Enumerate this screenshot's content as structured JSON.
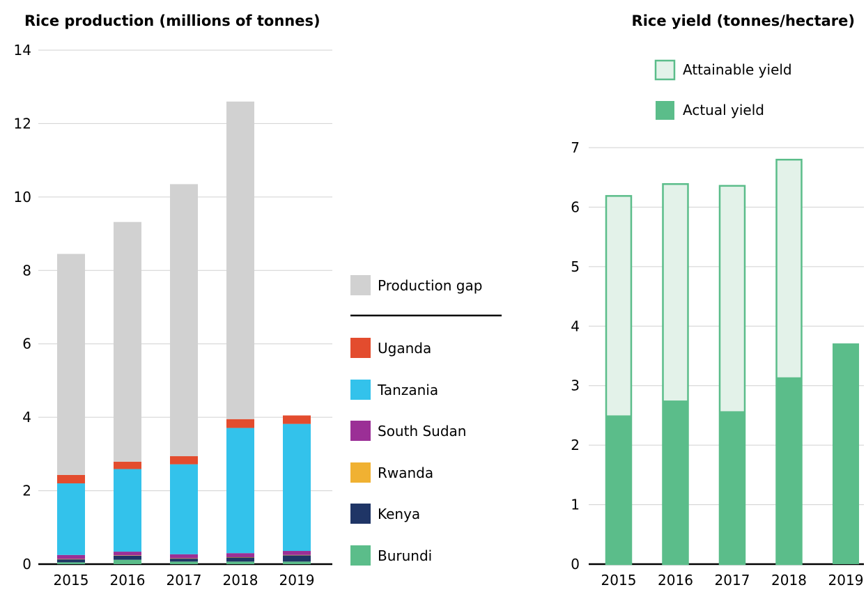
{
  "chart_data": [
    {
      "type": "bar",
      "stacked": true,
      "title": "Rice production (millions of tonnes)",
      "categories": [
        "2015",
        "2016",
        "2017",
        "2018",
        "2019"
      ],
      "ylim": [
        0,
        14
      ],
      "yticks": [
        "0",
        "2",
        "4",
        "6",
        "8",
        "10",
        "12",
        "14"
      ],
      "grid": true,
      "legend_position": "right",
      "series": [
        {
          "name": "Burundi",
          "color": "#5bbd8a",
          "values": [
            0.05,
            0.12,
            0.07,
            0.07,
            0.07
          ]
        },
        {
          "name": "Kenya",
          "color": "#1f3566",
          "values": [
            0.08,
            0.11,
            0.08,
            0.11,
            0.17
          ]
        },
        {
          "name": "Rwanda",
          "color": "#f0b132",
          "values": [
            0.01,
            0.01,
            0.01,
            0.01,
            0.01
          ]
        },
        {
          "name": "South Sudan",
          "color": "#9b2f96",
          "values": [
            0.11,
            0.1,
            0.11,
            0.11,
            0.11
          ]
        },
        {
          "name": "Tanzania",
          "color": "#33c2eb",
          "values": [
            1.95,
            2.25,
            2.45,
            3.41,
            3.46
          ]
        },
        {
          "name": "Uganda",
          "color": "#e34c2e",
          "values": [
            0.23,
            0.2,
            0.22,
            0.24,
            0.23
          ]
        },
        {
          "name": "Production gap",
          "color": "#d1d1d1",
          "values": [
            6.02,
            6.53,
            7.41,
            8.65,
            0
          ]
        }
      ]
    },
    {
      "type": "bar",
      "overlay": true,
      "title": "Rice yield (tonnes/hectare)",
      "categories": [
        "2015",
        "2016",
        "2017",
        "2018",
        "2019"
      ],
      "ylim": [
        0,
        7
      ],
      "yticks": [
        "0",
        "1",
        "2",
        "3",
        "4",
        "5",
        "6",
        "7"
      ],
      "grid": true,
      "legend_position": "top",
      "series": [
        {
          "name": "Attainable yield",
          "color": "#e3f2e9",
          "stroke": "#5bbd8a",
          "values": [
            6.2,
            6.4,
            6.37,
            6.81,
            null
          ]
        },
        {
          "name": "Actual yield",
          "color": "#5bbd8a",
          "values": [
            2.5,
            2.75,
            2.57,
            3.14,
            3.71
          ]
        }
      ]
    }
  ]
}
